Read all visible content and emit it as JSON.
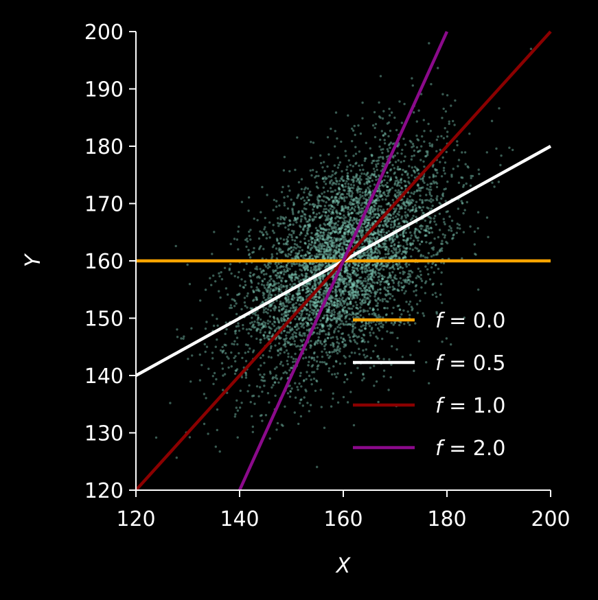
{
  "chart_data": {
    "type": "scatter",
    "xlabel": "X",
    "ylabel": "Y",
    "xlim": [
      120,
      200
    ],
    "ylim": [
      120,
      200
    ],
    "xticks": [
      "120",
      "140",
      "160",
      "180",
      "200"
    ],
    "yticks": [
      "120",
      "130",
      "140",
      "150",
      "160",
      "170",
      "180",
      "190",
      "200"
    ],
    "grid": false,
    "legend_position": "lower-right",
    "scatter": {
      "color": "#7fc9b6",
      "center": [
        160,
        160
      ],
      "approx_point_count": 5000,
      "x_spread": 10,
      "y_spread": 10,
      "correlation": 0.5
    },
    "series": [
      {
        "name": "f = 0.0",
        "legend_var": "f",
        "legend_eq": " = 0.0",
        "f": 0.0,
        "color": "#ffa500",
        "x": [
          120,
          200
        ],
        "y": [
          160,
          160
        ]
      },
      {
        "name": "f = 0.5",
        "legend_var": "f",
        "legend_eq": " = 0.5",
        "f": 0.5,
        "color": "#ffffff",
        "x": [
          120,
          200
        ],
        "y": [
          140,
          180
        ]
      },
      {
        "name": "f = 1.0",
        "legend_var": "f",
        "legend_eq": " = 1.0",
        "f": 1.0,
        "color": "#8b0000",
        "x": [
          120,
          200
        ],
        "y": [
          120,
          200
        ]
      },
      {
        "name": "f = 2.0",
        "legend_var": "f",
        "legend_eq": " = 2.0",
        "f": 2.0,
        "color": "#8b0a8b",
        "x": [
          140,
          180
        ],
        "y": [
          120,
          200
        ]
      }
    ]
  }
}
